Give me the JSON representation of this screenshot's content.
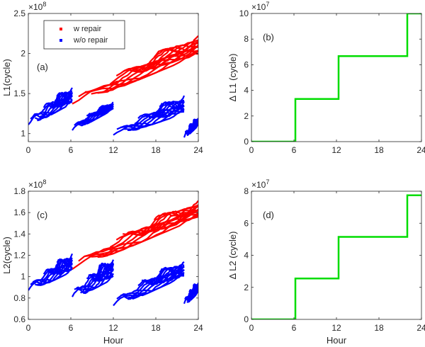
{
  "chart_data": [
    {
      "id": "a",
      "type": "scatter",
      "panel_label": "(a)",
      "xlabel": "",
      "ylabel": "L1(cycle)",
      "exponent": "×10",
      "exponent_power": "8",
      "xlim": [
        0,
        24
      ],
      "ylim": [
        0.9,
        2.5
      ],
      "xticks": [
        0,
        6,
        12,
        18,
        24
      ],
      "yticks": [
        1,
        1.5,
        2,
        2.5
      ],
      "legend": {
        "position": "top-left",
        "entries": [
          {
            "label": "w repair",
            "color": "#ff0000"
          },
          {
            "label": "w/o repair",
            "color": "#0000ff"
          }
        ]
      },
      "series": [
        {
          "name": "w repair",
          "color": "#ff0000",
          "segments": [
            {
              "x": [
                6.2,
                24
              ],
              "y_low": [
                1.33,
                1.98
              ],
              "y_high": [
                1.58,
                2.23
              ]
            }
          ]
        },
        {
          "name": "w/o repair",
          "color": "#0000ff",
          "segments": [
            {
              "x": [
                0,
                6.2
              ],
              "y_low": [
                1.08,
                1.38
              ],
              "y_high": [
                1.33,
                1.58
              ]
            },
            {
              "x": [
                6.2,
                12
              ],
              "y_low": [
                1.02,
                1.3
              ],
              "y_high": [
                1.2,
                1.4
              ]
            },
            {
              "x": [
                12,
                22
              ],
              "y_low": [
                0.95,
                1.25
              ],
              "y_high": [
                1.15,
                1.48
              ]
            },
            {
              "x": [
                22,
                24
              ],
              "y_low": [
                0.93,
                1.1
              ],
              "y_high": [
                1.12,
                1.2
              ]
            }
          ]
        }
      ]
    },
    {
      "id": "b",
      "type": "line",
      "panel_label": "(b)",
      "xlabel": "",
      "ylabel": "Δ L1 (cycle)",
      "exponent": "×10",
      "exponent_power": "7",
      "xlim": [
        0,
        24
      ],
      "ylim": [
        0,
        10
      ],
      "xticks": [
        0,
        6,
        12,
        18,
        24
      ],
      "yticks": [
        0,
        2,
        4,
        6,
        8,
        10
      ],
      "series": [
        {
          "color": "#00dd00",
          "x": [
            0,
            6.2,
            6.2,
            12.3,
            12.3,
            22,
            22,
            24
          ],
          "y": [
            0,
            0,
            3.33,
            3.33,
            6.67,
            6.67,
            10,
            10
          ]
        }
      ]
    },
    {
      "id": "c",
      "type": "scatter",
      "panel_label": "(c)",
      "xlabel": "Hour",
      "ylabel": "L2(cycle)",
      "exponent": "×10",
      "exponent_power": "8",
      "xlim": [
        0,
        24
      ],
      "ylim": [
        0.6,
        1.8
      ],
      "xticks": [
        0,
        6,
        12,
        18,
        24
      ],
      "yticks": [
        0.6,
        0.8,
        1,
        1.2,
        1.4,
        1.6,
        1.8
      ],
      "series": [
        {
          "name": "w repair",
          "color": "#ff0000",
          "segments": [
            {
              "x": [
                6.2,
                24
              ],
              "y_low": [
                1.05,
                1.55
              ],
              "y_high": [
                1.25,
                1.72
              ]
            }
          ]
        },
        {
          "name": "w/o repair",
          "color": "#0000ff",
          "segments": [
            {
              "x": [
                0,
                6.2
              ],
              "y_low": [
                0.85,
                1.05
              ],
              "y_high": [
                1.02,
                1.22
              ]
            },
            {
              "x": [
                6.2,
                12
              ],
              "y_low": [
                0.78,
                0.98
              ],
              "y_high": [
                0.98,
                1.18
              ]
            },
            {
              "x": [
                12,
                22
              ],
              "y_low": [
                0.7,
                1.0
              ],
              "y_high": [
                0.9,
                1.15
              ]
            },
            {
              "x": [
                22,
                24
              ],
              "y_low": [
                0.72,
                0.85
              ],
              "y_high": [
                0.88,
                0.95
              ]
            }
          ]
        }
      ]
    },
    {
      "id": "d",
      "type": "line",
      "panel_label": "(d)",
      "xlabel": "Hour",
      "ylabel": "Δ L2 (cycle)",
      "exponent": "×10",
      "exponent_power": "7",
      "xlim": [
        0,
        24
      ],
      "ylim": [
        0,
        8
      ],
      "xticks": [
        0,
        6,
        12,
        18,
        24
      ],
      "yticks": [
        0,
        2,
        4,
        6,
        8
      ],
      "series": [
        {
          "color": "#00dd00",
          "x": [
            0,
            6.2,
            6.2,
            12.3,
            12.3,
            22,
            22,
            24
          ],
          "y": [
            0,
            0,
            2.55,
            2.55,
            5.15,
            5.15,
            7.75,
            7.75
          ]
        }
      ]
    }
  ]
}
